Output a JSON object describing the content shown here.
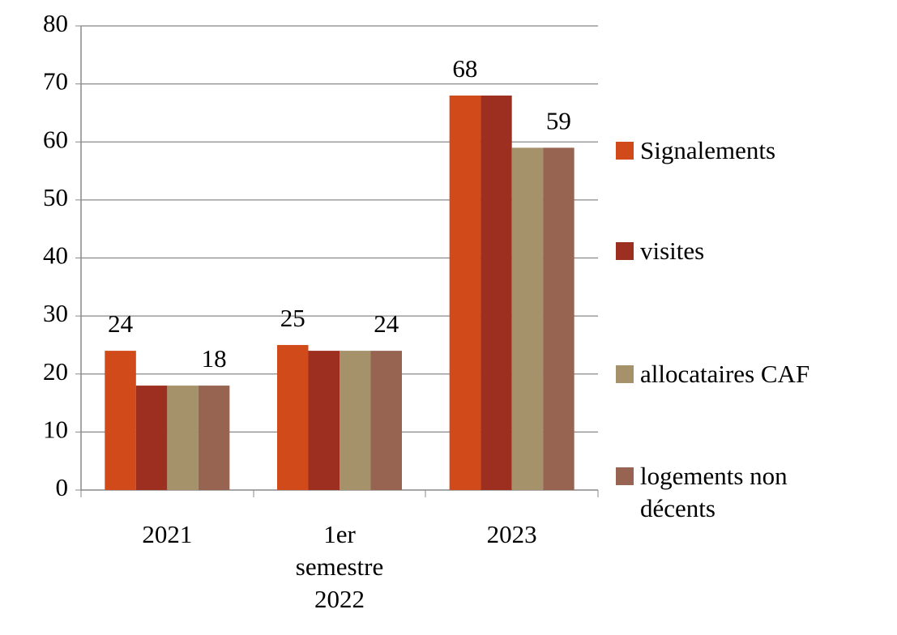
{
  "chart_data": {
    "type": "bar",
    "categories": [
      "2021",
      "1er semestre 2022",
      "2023"
    ],
    "series": [
      {
        "name": "Signalements",
        "color": "#d04a1a",
        "values": [
          24,
          25,
          68
        ],
        "show_labels": true
      },
      {
        "name": "visites",
        "color": "#9c2f20",
        "values": [
          18,
          24,
          68
        ],
        "show_labels": false
      },
      {
        "name": "allocataires CAF",
        "color": "#a5916a",
        "values": [
          18,
          24,
          59
        ],
        "show_labels": false
      },
      {
        "name": "logements non décents",
        "color": "#976452",
        "values": [
          18,
          24,
          59
        ],
        "show_labels": true
      }
    ],
    "ylim": [
      0,
      80
    ],
    "yticks": [
      0,
      10,
      20,
      30,
      40,
      50,
      60,
      70,
      80
    ],
    "grid": true,
    "legend": "right"
  }
}
